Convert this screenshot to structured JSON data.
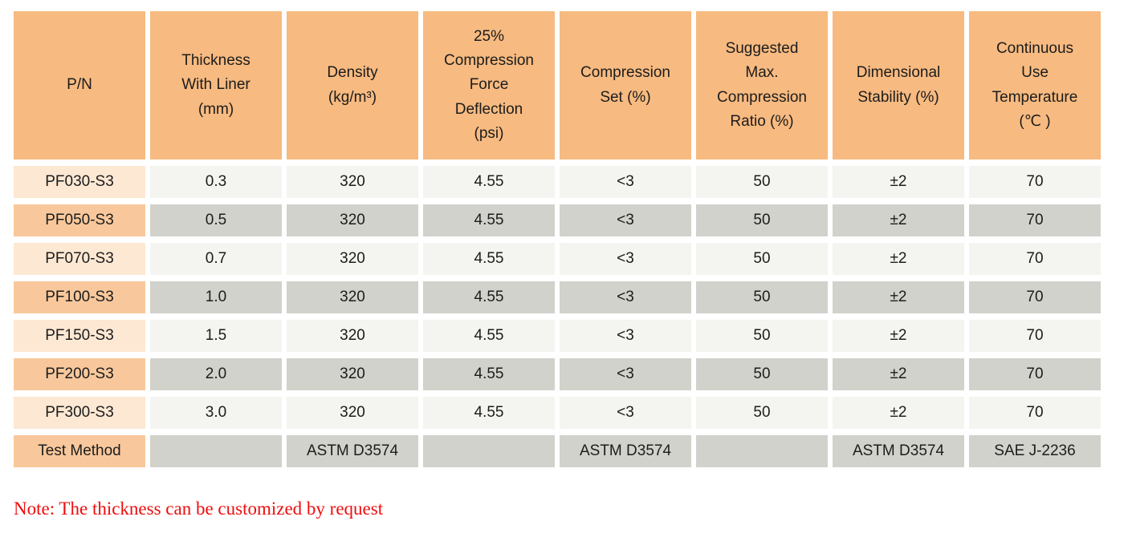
{
  "colors": {
    "header_orange": "#f7ba80",
    "row_orange": "#f8c89c",
    "row_peach": "#fde8d3",
    "cell_gray_dark": "#d2d2cc",
    "cell_gray_light": "#f4f4f0",
    "note_red": "#ee0d0d",
    "text": "#1c1c1c"
  },
  "table": {
    "columns": [
      {
        "id": "pn",
        "label": "P/N"
      },
      {
        "id": "thickness_with_liner",
        "label": "Thickness\nWith Liner\n(mm)"
      },
      {
        "id": "density",
        "label": "Density\n(kg/m³)"
      },
      {
        "id": "compression_force_deflection",
        "label": "25%\nCompression\nForce\nDeflection\n(psi)"
      },
      {
        "id": "compression_set",
        "label": "Compression\nSet (%)"
      },
      {
        "id": "suggested_max_compression_ratio",
        "label": "Suggested\nMax.\nCompression\nRatio (%)"
      },
      {
        "id": "dimensional_stability",
        "label": "Dimensional\nStability (%)"
      },
      {
        "id": "continuous_use_temperature",
        "label": "Continuous\nUse\nTemperature\n(℃ )"
      }
    ],
    "rows": [
      {
        "cells": [
          "PF030-S3",
          "0.3",
          "320",
          "4.55",
          "<3",
          "50",
          "±2",
          "70"
        ]
      },
      {
        "cells": [
          "PF050-S3",
          "0.5",
          "320",
          "4.55",
          "<3",
          "50",
          "±2",
          "70"
        ]
      },
      {
        "cells": [
          "PF070-S3",
          "0.7",
          "320",
          "4.55",
          "<3",
          "50",
          "±2",
          "70"
        ]
      },
      {
        "cells": [
          "PF100-S3",
          "1.0",
          "320",
          "4.55",
          "<3",
          "50",
          "±2",
          "70"
        ]
      },
      {
        "cells": [
          "PF150-S3",
          "1.5",
          "320",
          "4.55",
          "<3",
          "50",
          "±2",
          "70"
        ]
      },
      {
        "cells": [
          "PF200-S3",
          "2.0",
          "320",
          "4.55",
          "<3",
          "50",
          "±2",
          "70"
        ]
      },
      {
        "cells": [
          "PF300-S3",
          "3.0",
          "320",
          "4.55",
          "<3",
          "50",
          "±2",
          "70"
        ]
      }
    ],
    "test_method_row": {
      "cells": [
        "Test Method",
        "",
        "ASTM D3574",
        "",
        "ASTM D3574",
        "",
        "ASTM D3574",
        "SAE J-2236"
      ]
    }
  },
  "note": {
    "text": "Note: The thickness can be customized by request"
  }
}
